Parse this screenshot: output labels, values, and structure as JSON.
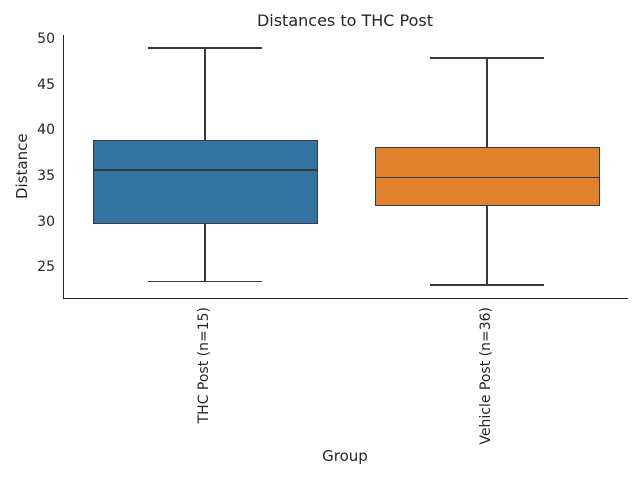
{
  "figure": {
    "title": "Distances to THC Post",
    "xlabel": "Group",
    "ylabel": "Distance"
  },
  "chart_data": {
    "type": "box",
    "title": "Distances to THC Post",
    "xlabel": "Group",
    "ylabel": "Distance",
    "ylim": [
      21.7,
      50.5
    ],
    "yticks": [
      25,
      30,
      35,
      40,
      45,
      50
    ],
    "grid": false,
    "legend_position": "none",
    "line_color": "#3A3A3A",
    "spine_color": "#262626",
    "categories": [
      "THC Post (n=15)",
      "Vehicle Post (n=36)"
    ],
    "series": [
      {
        "name": "THC Post (n=15)",
        "color": "#3274A1",
        "whisker_low": 23.5,
        "q1": 29.8,
        "median": 35.7,
        "q3": 39.0,
        "whisker_high": 49.1,
        "outliers": []
      },
      {
        "name": "Vehicle Post (n=36)",
        "color": "#E1812C",
        "whisker_low": 23.1,
        "q1": 31.8,
        "median": 34.9,
        "q3": 38.2,
        "whisker_high": 48.0,
        "outliers": []
      }
    ]
  }
}
